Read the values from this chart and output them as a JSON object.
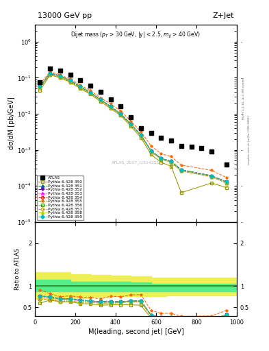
{
  "title_left": "13000 GeV pp",
  "title_right": "Z+Jet",
  "annotation": "Dijet mass (p$_T$ > 30 GeV, |y| < 2.5, m$_{jj}$ > 40 GeV)",
  "watermark": "ATLAS_2017_I1514251",
  "right_label": "mcplots.cern.ch [arXiv:1306.3436]",
  "right_label2": "Rivet 3.1.10, ≥ 2.5M events",
  "xlabel": "M(leading, second jet) [GeV]",
  "ylabel": "dσ/dM [pb/GeV]",
  "ylabel_ratio": "Ratio to ATLAS",
  "xlim": [
    0,
    1000
  ],
  "ylim_main": [
    1e-05,
    3
  ],
  "ratio_ylim": [
    0.3,
    2.5
  ],
  "atlas_x": [
    25,
    75,
    125,
    175,
    225,
    275,
    325,
    375,
    425,
    475,
    525,
    575,
    625,
    675,
    725,
    775,
    825,
    875,
    950
  ],
  "atlas_y": [
    0.075,
    0.18,
    0.16,
    0.12,
    0.085,
    0.06,
    0.04,
    0.025,
    0.016,
    0.008,
    0.004,
    0.003,
    0.0022,
    0.0018,
    0.0013,
    0.0012,
    0.0011,
    0.0009,
    0.0004
  ],
  "atlas_color": "#000000",
  "series": [
    {
      "label": "Pythia 6.428 350",
      "color": "#999900",
      "linestyle": "-",
      "marker": "s",
      "fillstyle": "none",
      "x": [
        25,
        75,
        125,
        175,
        225,
        275,
        325,
        375,
        425,
        475,
        525,
        575,
        625,
        675,
        725,
        875,
        950
      ],
      "y": [
        0.045,
        0.12,
        0.1,
        0.075,
        0.05,
        0.035,
        0.022,
        0.014,
        0.009,
        0.0045,
        0.0022,
        0.00075,
        0.00045,
        0.00035,
        6.5e-05,
        0.00012,
        9e-05
      ],
      "ratio": [
        0.6,
        0.67,
        0.63,
        0.63,
        0.59,
        0.58,
        0.55,
        0.56,
        0.56,
        0.56,
        0.55,
        0.25,
        0.2,
        0.19,
        0.05,
        0.13,
        0.23
      ]
    },
    {
      "label": "Pythia 6.428 351",
      "color": "#0055cc",
      "linestyle": "--",
      "marker": "^",
      "fillstyle": "full",
      "x": [
        25,
        75,
        125,
        175,
        225,
        275,
        325,
        375,
        425,
        475,
        525,
        575,
        625,
        675,
        725,
        875,
        950
      ],
      "y": [
        0.057,
        0.135,
        0.112,
        0.084,
        0.057,
        0.039,
        0.025,
        0.016,
        0.01,
        0.0052,
        0.0026,
        0.00095,
        0.00058,
        0.00048,
        0.00028,
        0.00019,
        0.00013
      ],
      "ratio": [
        0.76,
        0.75,
        0.7,
        0.7,
        0.67,
        0.65,
        0.63,
        0.64,
        0.63,
        0.65,
        0.65,
        0.32,
        0.26,
        0.27,
        0.22,
        0.21,
        0.33
      ]
    },
    {
      "label": "Pythia 6.428 352",
      "color": "#7700aa",
      "linestyle": "-.",
      "marker": "v",
      "fillstyle": "full",
      "x": [
        25,
        75,
        125,
        175,
        225,
        275,
        325,
        375,
        425,
        475,
        525,
        575,
        625,
        675,
        725,
        875,
        950
      ],
      "y": [
        0.057,
        0.135,
        0.112,
        0.084,
        0.057,
        0.039,
        0.025,
        0.016,
        0.01,
        0.0052,
        0.0026,
        0.00095,
        0.00058,
        0.00048,
        0.00028,
        0.00019,
        0.00013
      ],
      "ratio": [
        0.76,
        0.75,
        0.7,
        0.7,
        0.67,
        0.65,
        0.63,
        0.64,
        0.63,
        0.65,
        0.65,
        0.32,
        0.26,
        0.27,
        0.22,
        0.21,
        0.33
      ]
    },
    {
      "label": "Pythia 6.428 353",
      "color": "#ff00ff",
      "linestyle": ":",
      "marker": "^",
      "fillstyle": "none",
      "x": [
        25,
        75,
        125,
        175,
        225,
        275,
        325,
        375,
        425,
        475,
        525,
        575,
        625,
        675,
        725,
        875,
        950
      ],
      "y": [
        0.055,
        0.13,
        0.108,
        0.081,
        0.055,
        0.038,
        0.024,
        0.015,
        0.0097,
        0.005,
        0.0025,
        0.0009,
        0.00055,
        0.00045,
        0.00026,
        0.00018,
        0.00012
      ],
      "ratio": [
        0.73,
        0.72,
        0.68,
        0.68,
        0.65,
        0.63,
        0.6,
        0.6,
        0.61,
        0.63,
        0.63,
        0.3,
        0.25,
        0.25,
        0.2,
        0.2,
        0.3
      ]
    },
    {
      "label": "Pythia 6.428 354",
      "color": "#cc2200",
      "linestyle": "--",
      "marker": "o",
      "fillstyle": "none",
      "x": [
        25,
        75,
        125,
        175,
        225,
        275,
        325,
        375,
        425,
        475,
        525,
        575,
        625,
        675,
        725,
        875,
        950
      ],
      "y": [
        0.057,
        0.135,
        0.112,
        0.084,
        0.057,
        0.039,
        0.025,
        0.016,
        0.01,
        0.0052,
        0.0026,
        0.00095,
        0.00058,
        0.00048,
        0.00028,
        0.00019,
        0.00013
      ],
      "ratio": [
        0.76,
        0.75,
        0.7,
        0.7,
        0.67,
        0.65,
        0.63,
        0.64,
        0.63,
        0.65,
        0.65,
        0.32,
        0.26,
        0.27,
        0.22,
        0.21,
        0.33
      ]
    },
    {
      "label": "Pythia 6.428 355",
      "color": "#ff6600",
      "linestyle": "--",
      "marker": "*",
      "fillstyle": "full",
      "x": [
        25,
        75,
        125,
        175,
        225,
        275,
        325,
        375,
        425,
        475,
        525,
        575,
        625,
        675,
        725,
        875,
        950
      ],
      "y": [
        0.068,
        0.148,
        0.12,
        0.092,
        0.063,
        0.044,
        0.028,
        0.019,
        0.012,
        0.0063,
        0.0032,
        0.0013,
        0.00078,
        0.00065,
        0.00038,
        0.00027,
        0.00017
      ],
      "ratio": [
        0.91,
        0.82,
        0.75,
        0.77,
        0.74,
        0.73,
        0.7,
        0.76,
        0.75,
        0.79,
        0.8,
        0.43,
        0.36,
        0.36,
        0.29,
        0.3,
        0.43
      ]
    },
    {
      "label": "Pythia 6.428 356",
      "color": "#33aa00",
      "linestyle": ":",
      "marker": "s",
      "fillstyle": "none",
      "x": [
        25,
        75,
        125,
        175,
        225,
        275,
        325,
        375,
        425,
        475,
        525,
        575,
        625,
        675,
        725,
        875,
        950
      ],
      "y": [
        0.052,
        0.124,
        0.103,
        0.078,
        0.053,
        0.037,
        0.024,
        0.015,
        0.0097,
        0.005,
        0.0025,
        0.0009,
        0.00055,
        0.00045,
        0.00026,
        0.00018,
        0.00012
      ],
      "ratio": [
        0.69,
        0.69,
        0.64,
        0.65,
        0.62,
        0.62,
        0.6,
        0.6,
        0.61,
        0.63,
        0.63,
        0.3,
        0.25,
        0.25,
        0.2,
        0.2,
        0.3
      ]
    },
    {
      "label": "Pythia 6.428 357",
      "color": "#ccaa00",
      "linestyle": "--",
      "marker": "D",
      "fillstyle": "none",
      "x": [
        25,
        75,
        125,
        175,
        225,
        275,
        325,
        375,
        425,
        475,
        525,
        575,
        625,
        675,
        725,
        875,
        950
      ],
      "y": [
        0.052,
        0.124,
        0.103,
        0.078,
        0.053,
        0.037,
        0.024,
        0.015,
        0.0097,
        0.005,
        0.0025,
        0.0009,
        0.00055,
        0.00045,
        0.00026,
        0.00018,
        0.00012
      ],
      "ratio": [
        0.69,
        0.69,
        0.64,
        0.65,
        0.62,
        0.62,
        0.6,
        0.6,
        0.61,
        0.63,
        0.63,
        0.3,
        0.25,
        0.25,
        0.2,
        0.2,
        0.3
      ]
    },
    {
      "label": "Pythia 6.428 358",
      "color": "#aacc00",
      "linestyle": "-.",
      "marker": "^",
      "fillstyle": "full",
      "x": [
        25,
        75,
        125,
        175,
        225,
        275,
        325,
        375,
        425,
        475,
        525,
        575,
        625,
        675,
        725,
        875,
        950
      ],
      "y": [
        0.057,
        0.135,
        0.112,
        0.084,
        0.057,
        0.039,
        0.025,
        0.016,
        0.01,
        0.0052,
        0.0026,
        0.00095,
        0.00058,
        0.00048,
        0.00028,
        0.00019,
        0.00013
      ],
      "ratio": [
        0.76,
        0.75,
        0.7,
        0.7,
        0.67,
        0.65,
        0.63,
        0.64,
        0.63,
        0.65,
        0.65,
        0.32,
        0.26,
        0.27,
        0.22,
        0.21,
        0.33
      ]
    },
    {
      "label": "Pythia 6.428 359",
      "color": "#00bbbb",
      "linestyle": "--",
      "marker": "D",
      "fillstyle": "full",
      "x": [
        25,
        75,
        125,
        175,
        225,
        275,
        325,
        375,
        425,
        475,
        525,
        575,
        625,
        675,
        725,
        875,
        950
      ],
      "y": [
        0.057,
        0.135,
        0.112,
        0.084,
        0.057,
        0.039,
        0.025,
        0.016,
        0.01,
        0.0052,
        0.0026,
        0.00095,
        0.00058,
        0.00048,
        0.00028,
        0.00019,
        0.00013
      ],
      "ratio": [
        0.76,
        0.75,
        0.7,
        0.7,
        0.67,
        0.65,
        0.63,
        0.64,
        0.63,
        0.65,
        0.65,
        0.32,
        0.26,
        0.27,
        0.22,
        0.21,
        0.33
      ]
    }
  ],
  "band_x": [
    0,
    75,
    175,
    275,
    375,
    475,
    575,
    650,
    1000
  ],
  "band_green_lo": [
    0.88,
    0.88,
    0.88,
    0.88,
    0.88,
    0.88,
    0.88,
    0.88,
    0.88
  ],
  "band_green_hi": [
    1.15,
    1.15,
    1.1,
    1.1,
    1.1,
    1.08,
    1.05,
    1.05,
    1.05
  ],
  "band_yellow_lo": [
    0.7,
    0.7,
    0.72,
    0.74,
    0.76,
    0.76,
    0.76,
    0.78,
    0.78
  ],
  "band_yellow_hi": [
    1.32,
    1.32,
    1.28,
    1.26,
    1.24,
    1.22,
    1.2,
    1.2,
    1.2
  ]
}
